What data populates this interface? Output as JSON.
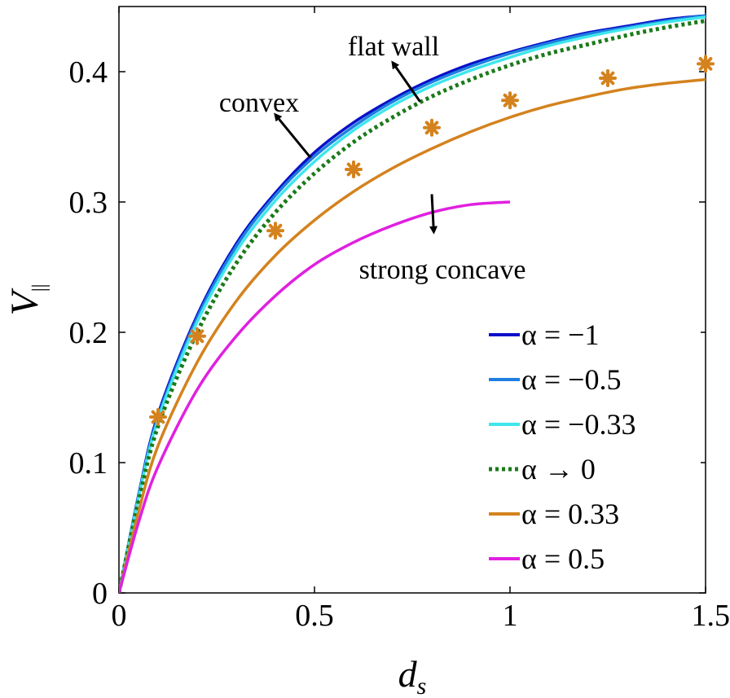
{
  "chart_data": {
    "type": "line",
    "title": "",
    "xlabel": "d",
    "xlabel_subscript": "s",
    "ylabel": "V",
    "ylabel_subscript": "||",
    "xlim": [
      0,
      1.5
    ],
    "ylim": [
      0,
      0.45
    ],
    "xticks": [
      0,
      0.5,
      1,
      1.5
    ],
    "xtick_labels": [
      "0",
      "0.5",
      "1",
      "1.5"
    ],
    "yticks": [
      0,
      0.1,
      0.2,
      0.3,
      0.4
    ],
    "ytick_labels": [
      "0",
      "0.1",
      "0.2",
      "0.3",
      "0.4"
    ],
    "grid": false,
    "legend_position": "bottom-right",
    "series": [
      {
        "name": "α = −1",
        "color": "#0a10c8",
        "dash": "solid",
        "x": [
          0,
          0.05,
          0.1,
          0.2,
          0.3,
          0.4,
          0.5,
          0.6,
          0.7,
          0.8,
          0.9,
          1.0,
          1.1,
          1.2,
          1.3,
          1.4,
          1.5
        ],
        "y": [
          0,
          0.075,
          0.137,
          0.213,
          0.268,
          0.307,
          0.338,
          0.361,
          0.379,
          0.394,
          0.406,
          0.415,
          0.423,
          0.43,
          0.435,
          0.44,
          0.443
        ]
      },
      {
        "name": "α = −0.5",
        "color": "#1e7fe0",
        "dash": "solid",
        "x": [
          0,
          0.05,
          0.1,
          0.2,
          0.3,
          0.4,
          0.5,
          0.6,
          0.7,
          0.8,
          0.9,
          1.0,
          1.1,
          1.2,
          1.3,
          1.4,
          1.5
        ],
        "y": [
          0,
          0.074,
          0.135,
          0.211,
          0.266,
          0.305,
          0.335,
          0.358,
          0.377,
          0.392,
          0.404,
          0.414,
          0.422,
          0.429,
          0.434,
          0.439,
          0.443
        ]
      },
      {
        "name": "α = −0.33",
        "color": "#3fe6ec",
        "dash": "solid",
        "x": [
          0,
          0.05,
          0.1,
          0.2,
          0.3,
          0.4,
          0.5,
          0.6,
          0.7,
          0.8,
          0.9,
          1.0,
          1.1,
          1.2,
          1.3,
          1.4,
          1.5
        ],
        "y": [
          0,
          0.073,
          0.133,
          0.208,
          0.262,
          0.301,
          0.331,
          0.355,
          0.374,
          0.389,
          0.401,
          0.411,
          0.42,
          0.427,
          0.433,
          0.438,
          0.442
        ]
      },
      {
        "name": "α → 0",
        "color": "#1a7a1a",
        "dash": "dotted",
        "x": [
          0,
          0.05,
          0.1,
          0.2,
          0.3,
          0.4,
          0.5,
          0.6,
          0.7,
          0.8,
          0.9,
          1.0,
          1.1,
          1.2,
          1.3,
          1.4,
          1.5
        ],
        "y": [
          0,
          0.07,
          0.128,
          0.2,
          0.253,
          0.292,
          0.322,
          0.346,
          0.365,
          0.381,
          0.394,
          0.405,
          0.414,
          0.421,
          0.428,
          0.434,
          0.439
        ]
      },
      {
        "name": "α = 0.33",
        "color": "#d4821e",
        "dash": "solid",
        "x": [
          0,
          0.05,
          0.1,
          0.2,
          0.3,
          0.4,
          0.5,
          0.6,
          0.7,
          0.8,
          0.9,
          1.0,
          1.1,
          1.2,
          1.3,
          1.4,
          1.5
        ],
        "y": [
          0,
          0.062,
          0.113,
          0.177,
          0.224,
          0.259,
          0.286,
          0.308,
          0.326,
          0.341,
          0.354,
          0.365,
          0.374,
          0.381,
          0.387,
          0.391,
          0.394
        ]
      },
      {
        "name": "α = 0.5",
        "color": "#e020e0",
        "dash": "solid",
        "x": [
          0,
          0.05,
          0.1,
          0.2,
          0.3,
          0.4,
          0.5,
          0.6,
          0.7,
          0.8,
          0.9,
          1.0
        ],
        "y": [
          0,
          0.054,
          0.097,
          0.156,
          0.197,
          0.228,
          0.252,
          0.269,
          0.282,
          0.292,
          0.298,
          0.3
        ]
      }
    ],
    "scatter": {
      "name": "markers",
      "color": "#d4821e",
      "x": [
        0.1,
        0.2,
        0.4,
        0.6,
        0.8,
        1.0,
        1.25,
        1.5
      ],
      "y": [
        0.135,
        0.197,
        0.278,
        0.325,
        0.357,
        0.378,
        0.395,
        0.406
      ]
    },
    "annotations": [
      {
        "text": "flat wall",
        "arrow_from": [
          0.77,
          0.377
        ],
        "arrow_to": [
          0.7,
          0.407
        ]
      },
      {
        "text": "convex",
        "arrow_from": [
          0.49,
          0.334
        ],
        "arrow_to": [
          0.4,
          0.367
        ]
      },
      {
        "text": "strong concave",
        "arrow_from": [
          0.8,
          0.306
        ],
        "arrow_to": [
          0.805,
          0.277
        ]
      }
    ]
  }
}
